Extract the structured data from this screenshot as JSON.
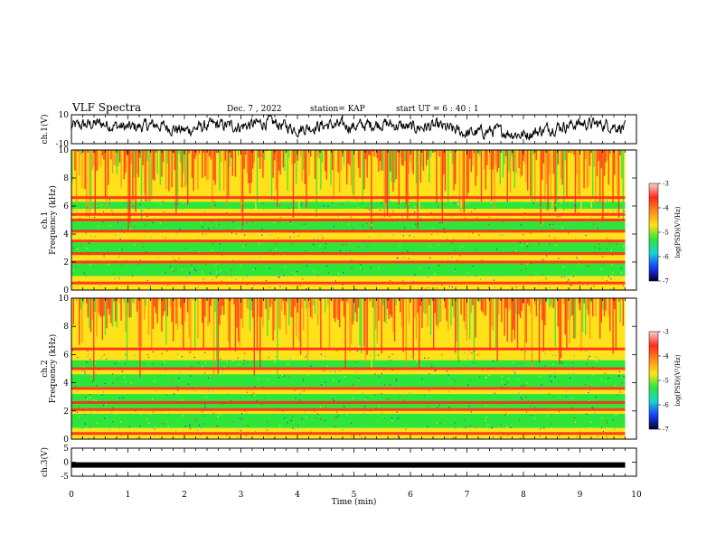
{
  "header": {
    "title": "VLF Spectra",
    "date": "Dec. 7 , 2022",
    "station": "station= KAP",
    "start": "start UT = 6 : 40 : 1"
  },
  "chart_data": [
    {
      "type": "line",
      "panel": "ch1-waveform",
      "ylabel": "ch.1(V)",
      "ylim": [
        -10,
        10
      ],
      "yticks": [
        "10",
        "-10"
      ],
      "x": [
        0.0,
        0.5,
        1.0,
        1.5,
        2.0,
        2.5,
        3.0,
        3.5,
        4.0,
        4.5,
        5.0,
        5.5,
        6.0,
        6.5,
        7.0,
        7.5,
        8.0,
        8.5,
        9.0,
        9.5,
        9.8
      ],
      "values": [
        2,
        4,
        1,
        3,
        -1,
        3,
        2,
        5,
        0,
        3,
        2,
        4,
        1,
        2,
        -3,
        -1,
        -4,
        1,
        4,
        3,
        1
      ],
      "line_color": "#000000"
    },
    {
      "type": "heatmap",
      "panel": "ch1-spectrogram",
      "ylabel": "ch.1 Frequency (kHz)",
      "ylim": [
        0,
        10
      ],
      "yticks": [
        "10",
        "8",
        "6",
        "4",
        "2",
        "0"
      ],
      "xlim": [
        0,
        9.8
      ],
      "red_bands_khz": [
        6.6,
        5.4,
        5.0,
        4.2,
        3.5,
        2.6,
        2.0,
        0.5
      ],
      "green_bands_khz": [
        [
          1.0,
          1.9
        ],
        [
          2.6,
          3.4
        ],
        [
          4.2,
          4.9
        ],
        [
          5.8,
          6.3
        ]
      ],
      "colorbar": {
        "label": "log(PSD)(V²/Hz)",
        "range": [
          -7,
          -3
        ],
        "ticks": [
          "-3",
          "-4",
          "-5",
          "-6",
          "-7"
        ]
      }
    },
    {
      "type": "heatmap",
      "panel": "ch2-spectrogram",
      "ylabel": "ch.2 Frequency (kHz)",
      "ylim": [
        0,
        10
      ],
      "yticks": [
        "10",
        "8",
        "6",
        "4",
        "2",
        "0"
      ],
      "xlim": [
        0,
        9.8
      ],
      "red_bands_khz": [
        6.4,
        5.0,
        3.6,
        2.6,
        2.1,
        0.4
      ],
      "green_bands_khz": [
        [
          0.8,
          1.8
        ],
        [
          2.2,
          3.2
        ],
        [
          3.7,
          4.6
        ],
        [
          5.0,
          5.6
        ]
      ],
      "colorbar": {
        "label": "log(PSD)(V²/Hz)",
        "range": [
          -7,
          -3
        ],
        "ticks": [
          "-3",
          "-4",
          "-5",
          "-6",
          "-7"
        ]
      }
    },
    {
      "type": "line",
      "panel": "ch3-trace",
      "ylabel": "ch.3(V)",
      "ylim": [
        -5,
        5
      ],
      "yticks": [
        "5",
        "0",
        "-5"
      ],
      "x": [
        0,
        9.8
      ],
      "values": [
        -1,
        -1
      ],
      "line_color": "#000000"
    }
  ],
  "xaxis": {
    "label": "Time (min)",
    "range": [
      0,
      10
    ],
    "ticks": [
      "0",
      "1",
      "2",
      "3",
      "4",
      "5",
      "6",
      "7",
      "8",
      "9",
      "10"
    ]
  },
  "colors": {
    "red": "#ff2a1a",
    "orange": "#ff8c1a",
    "yellow": "#ffe21a",
    "green": "#2ee63a",
    "cyan": "#17d6d0",
    "blue": "#1a3dff",
    "background": "#ffffff"
  }
}
